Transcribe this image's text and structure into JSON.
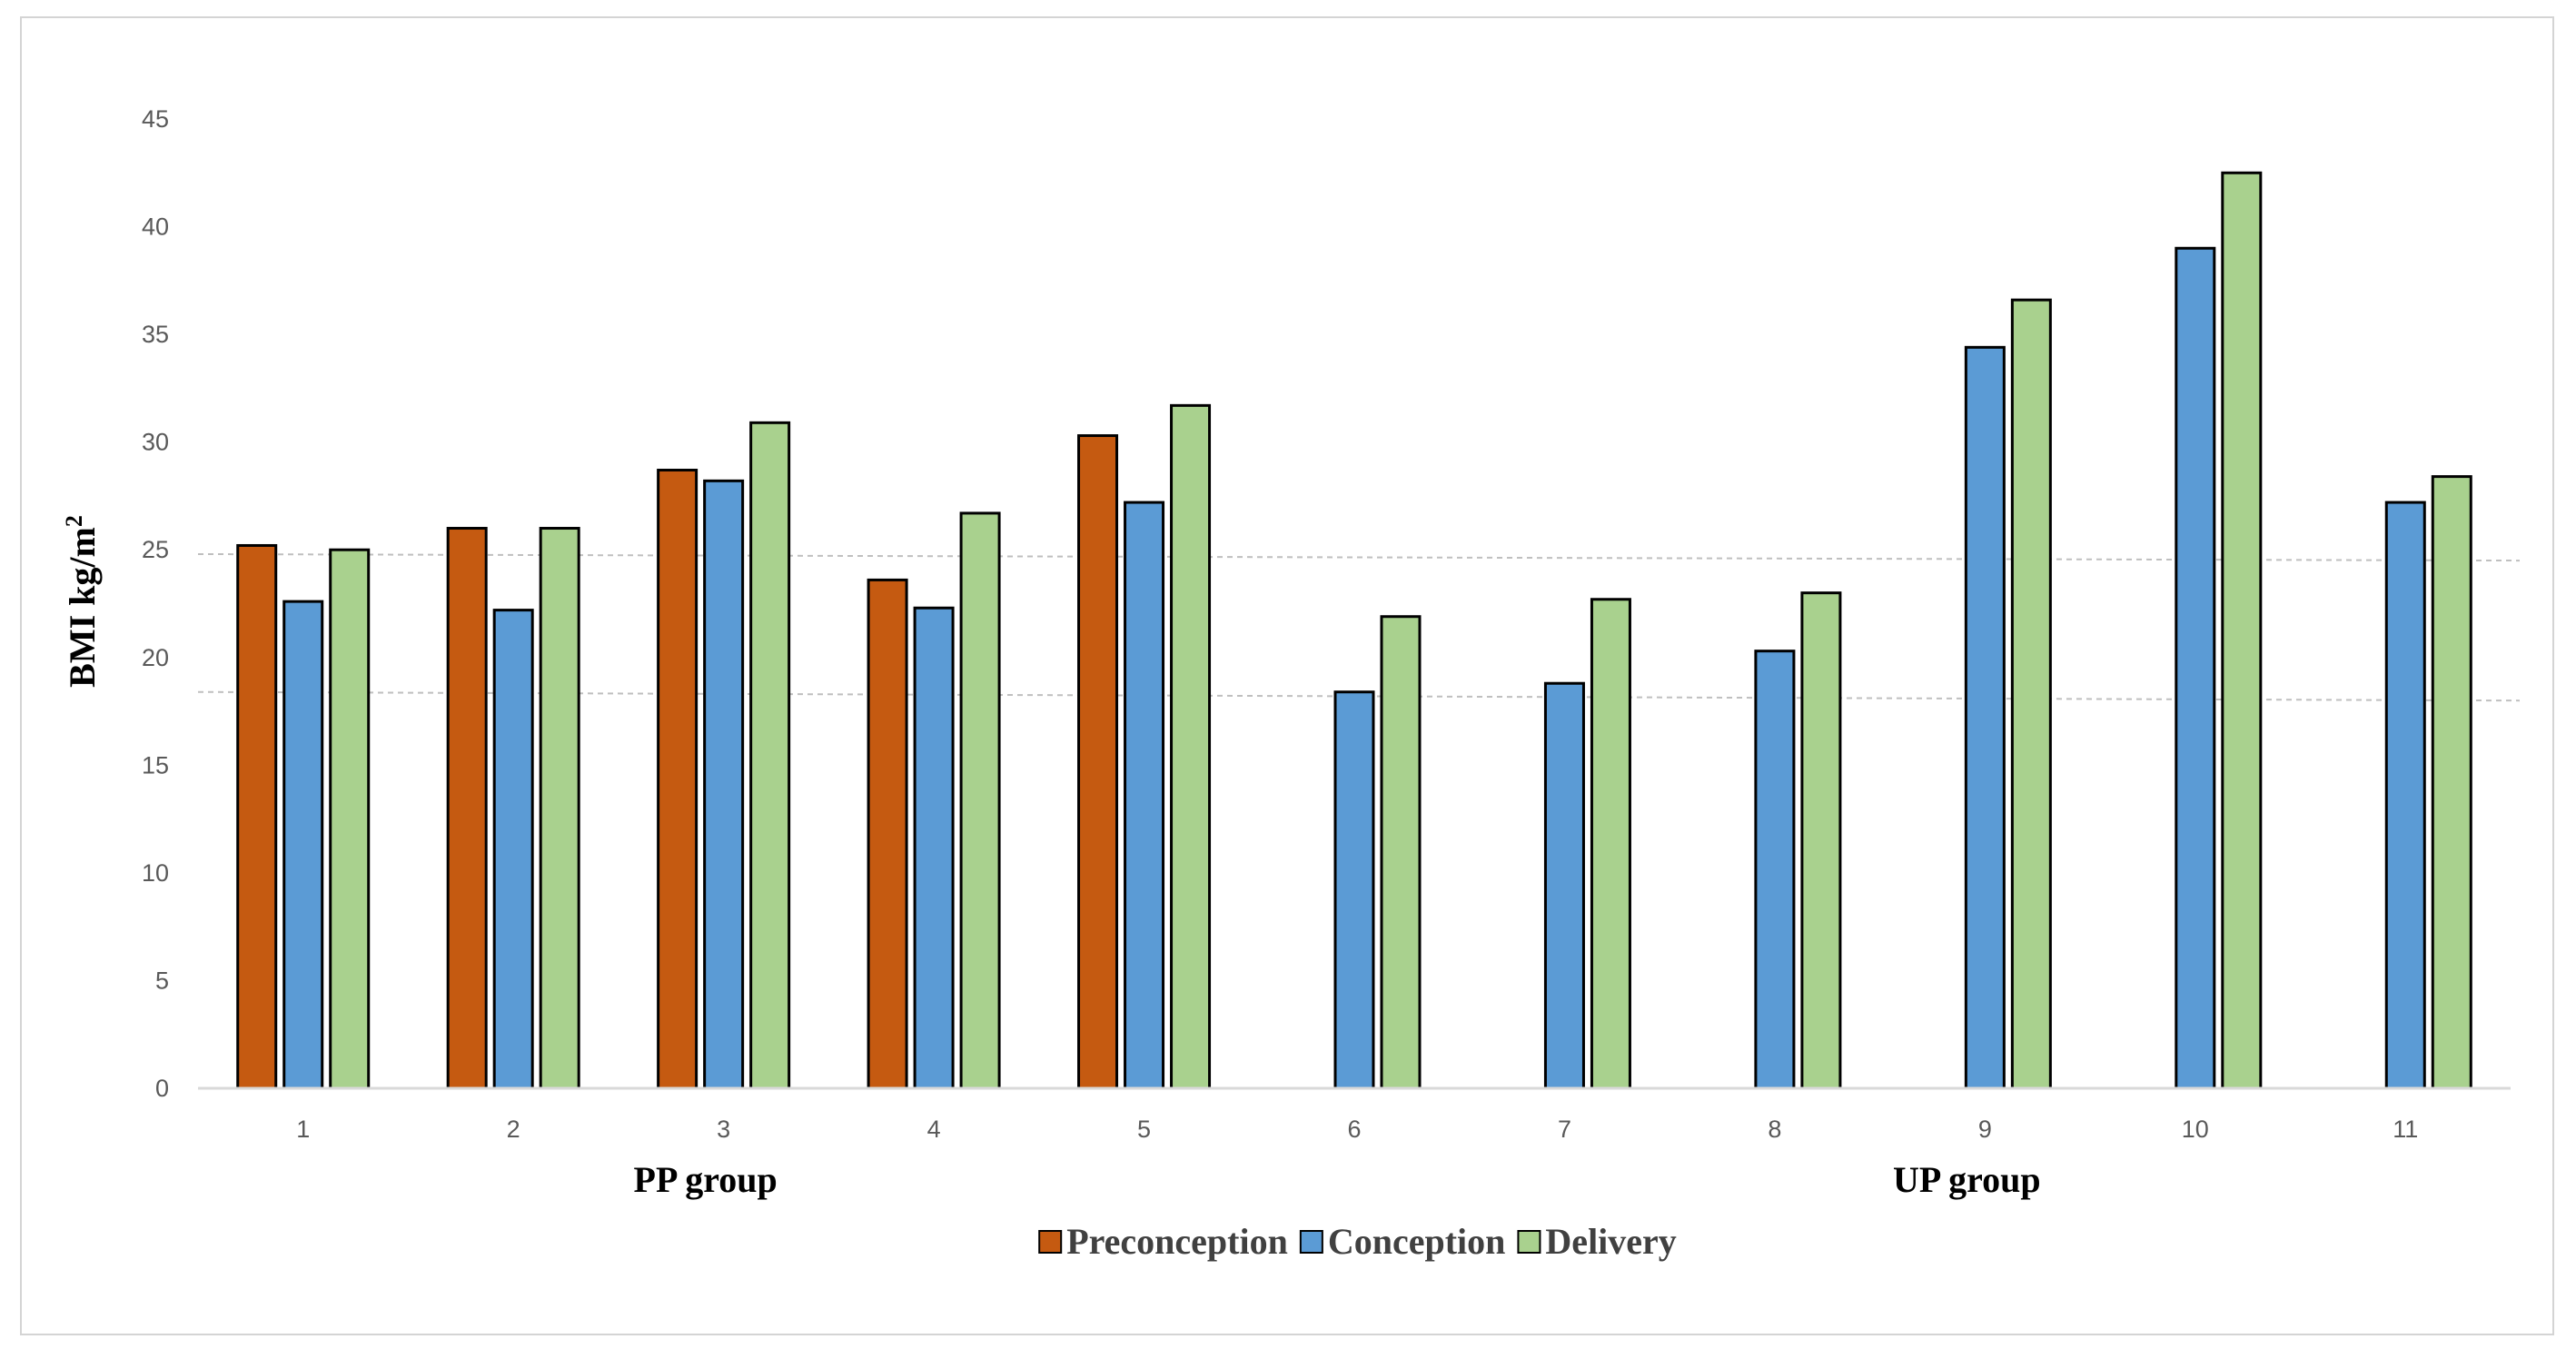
{
  "chart_data": {
    "type": "bar",
    "title": "",
    "xlabel": "",
    "ylabel": "BMI kg/m",
    "ylabel_superscript": "2",
    "ylim": [
      0,
      45
    ],
    "yticks": [
      0,
      5,
      10,
      15,
      20,
      25,
      30,
      35,
      40,
      45
    ],
    "categories": [
      "1",
      "2",
      "3",
      "4",
      "5",
      "6",
      "7",
      "8",
      "9",
      "10",
      "11"
    ],
    "group_labels": [
      {
        "label": "PP group",
        "center_category": "3"
      },
      {
        "label": "UP group",
        "center_category": "9"
      }
    ],
    "reference_lines": [
      {
        "start": 24.8,
        "end": 24.5
      },
      {
        "start": 18.4,
        "end": 18.0
      }
    ],
    "legend_position": "bottom-center",
    "series": [
      {
        "name": "Preconception",
        "color": "#c55a11",
        "values": [
          25.2,
          26.0,
          28.7,
          23.6,
          30.3,
          null,
          null,
          null,
          null,
          null,
          null
        ]
      },
      {
        "name": "Conception",
        "color": "#5b9bd5",
        "values": [
          22.6,
          22.2,
          28.2,
          22.3,
          27.2,
          18.4,
          18.8,
          20.3,
          34.4,
          39.0,
          27.2
        ]
      },
      {
        "name": "Delivery",
        "color": "#a9d18e",
        "values": [
          25.0,
          26.0,
          30.9,
          26.7,
          31.7,
          21.9,
          22.7,
          23.0,
          36.6,
          42.5,
          28.4
        ]
      }
    ]
  }
}
